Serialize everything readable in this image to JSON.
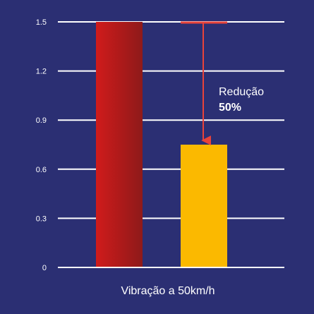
{
  "chart_data": {
    "type": "bar",
    "categories": [
      "",
      ""
    ],
    "values": [
      1.5,
      0.75
    ],
    "ylim": [
      0,
      1.5
    ],
    "yticks": [
      "0",
      "0.3",
      "0.6",
      "0.9",
      "1.2",
      "1.5"
    ],
    "ytick_values": [
      0,
      0.3,
      0.6,
      0.9,
      1.2,
      1.5
    ],
    "xlabel": "Vibração a 50km/h",
    "grid": true,
    "annotation": {
      "text": "Redução",
      "value": "50%",
      "from": 1.5,
      "to": 0.75
    },
    "colors": {
      "background": "#2b2f73",
      "bar1_start": "#d01b1b",
      "bar1_end": "#8e1a1a",
      "bar2": "#fbb900",
      "grid": "#ffffff",
      "arrow": "#e8433a"
    }
  }
}
